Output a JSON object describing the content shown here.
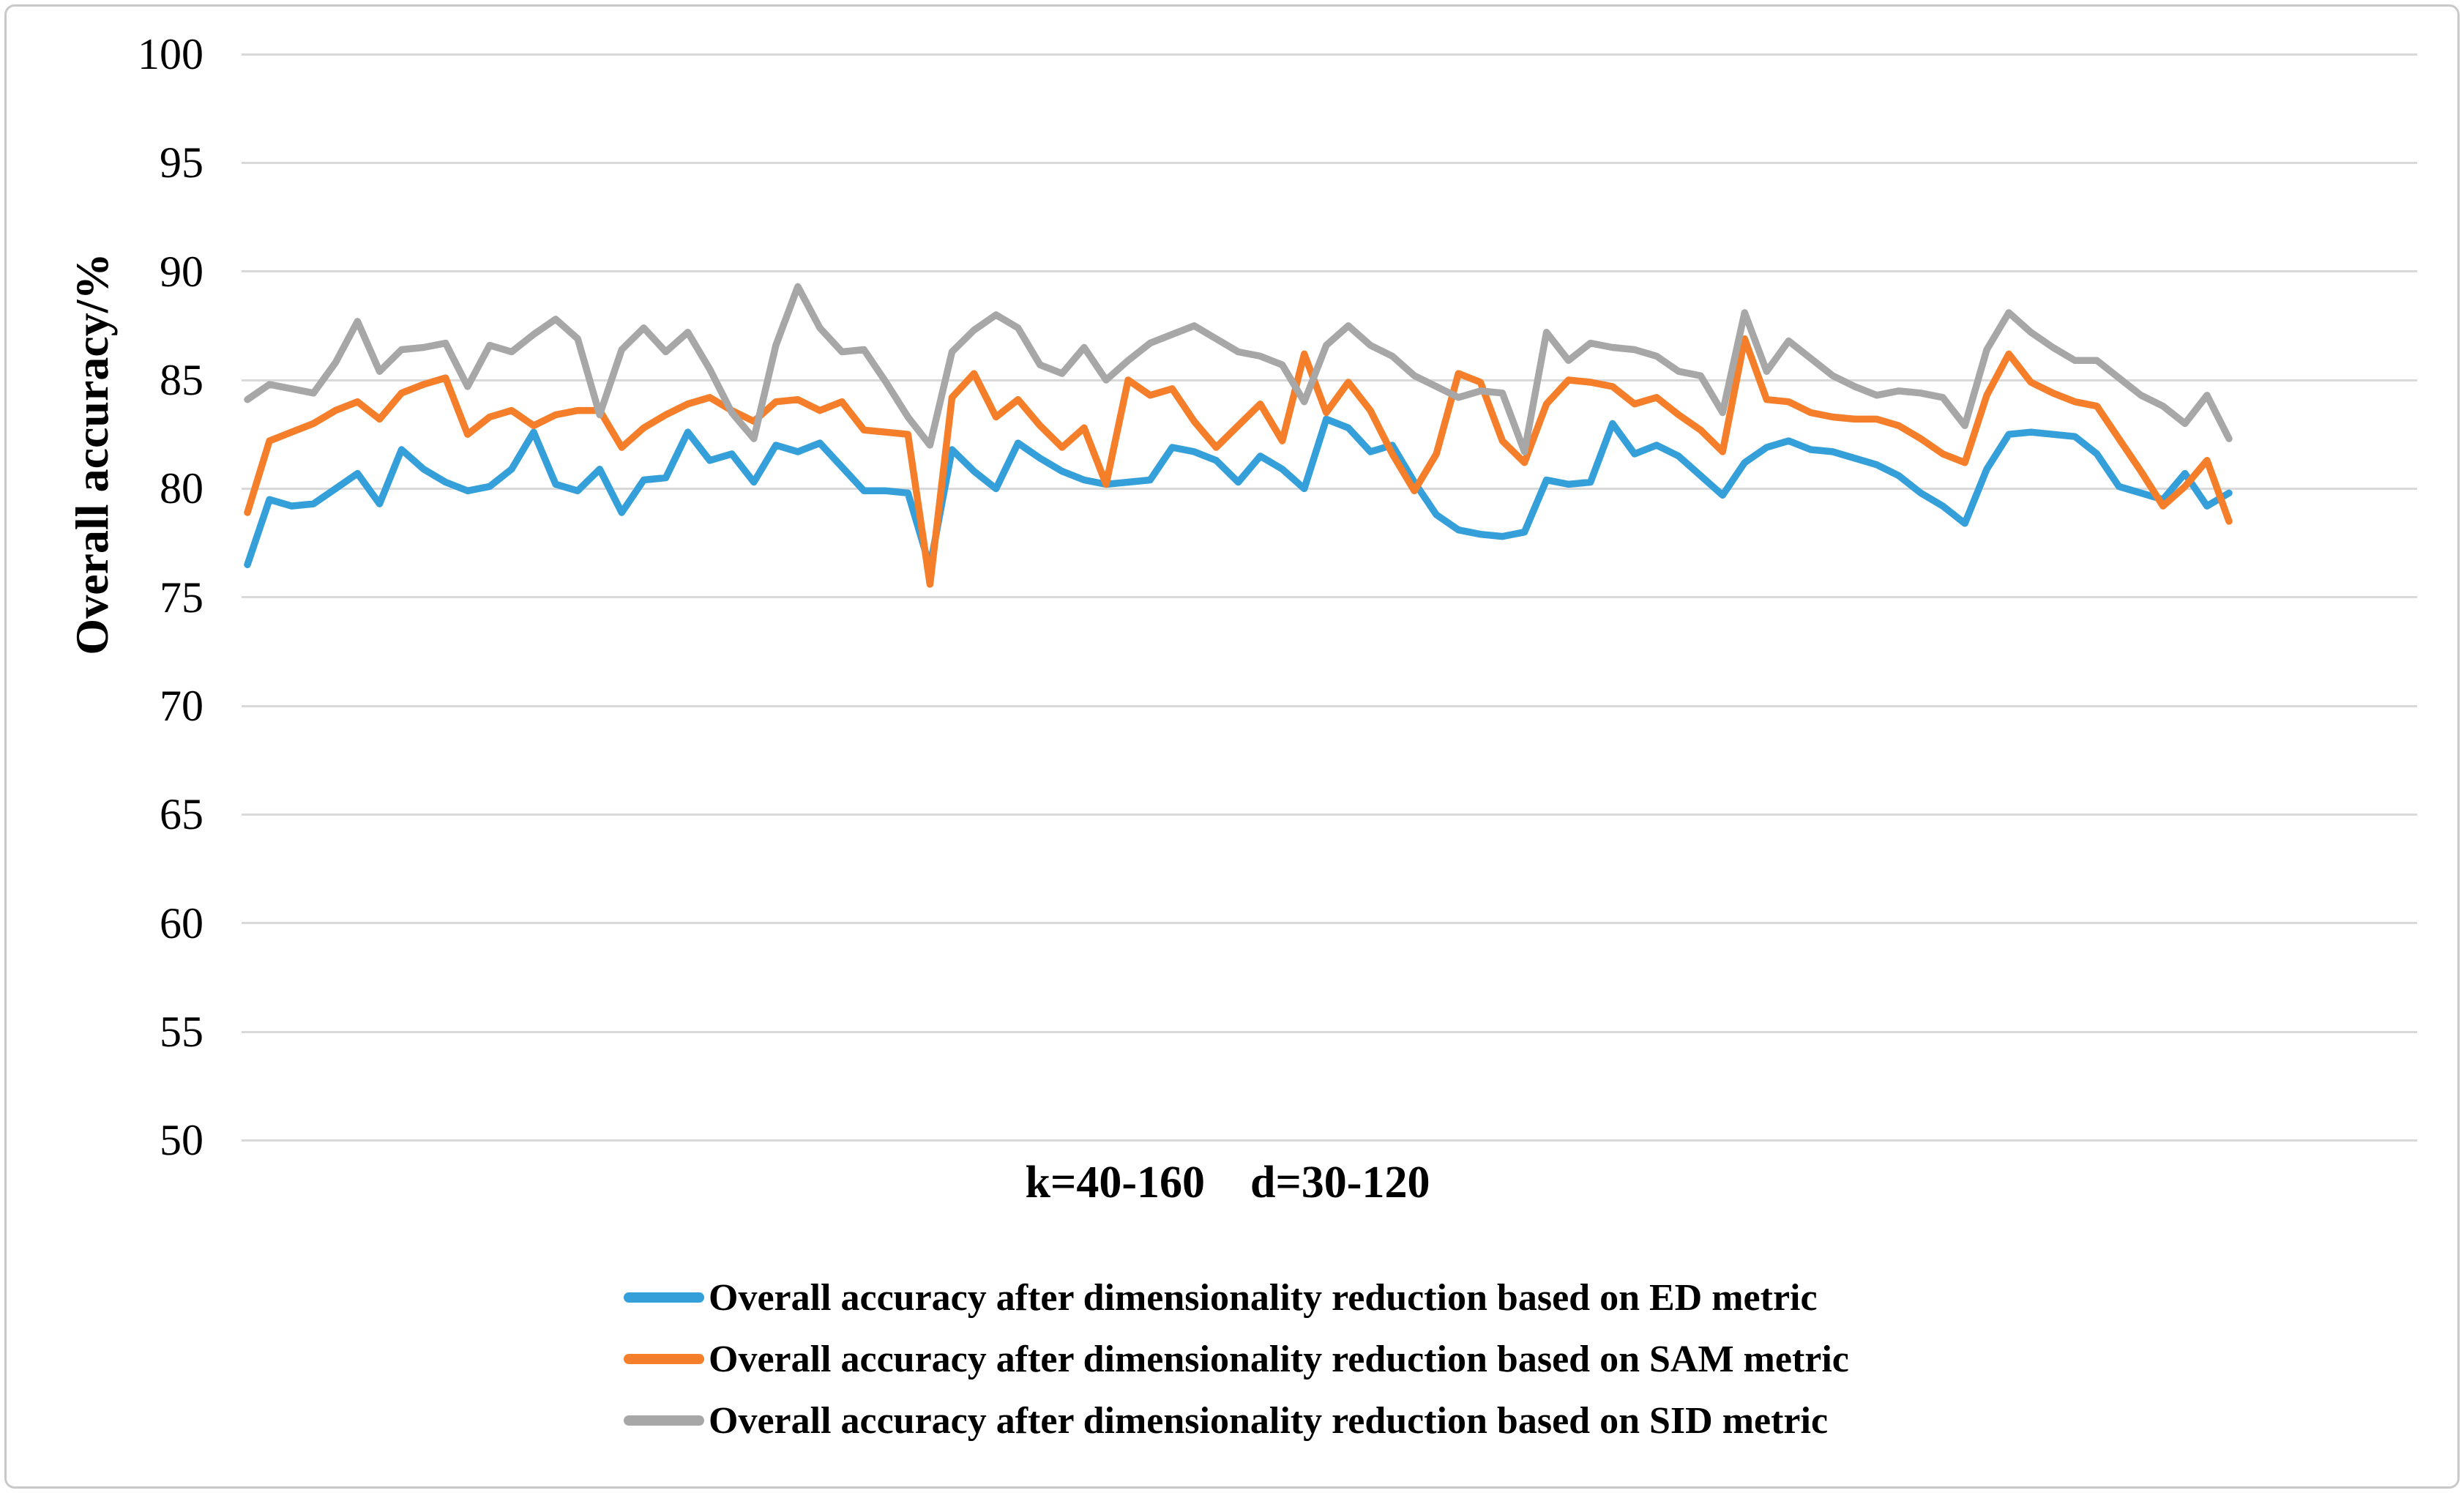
{
  "y_axis": {
    "title": "Overall accuracy/%",
    "ticks": [
      100,
      95,
      90,
      85,
      80,
      75,
      70,
      65,
      60,
      55,
      50
    ],
    "min": 50,
    "max": 100
  },
  "x_axis": {
    "label": "k=40-160    d=30-120"
  },
  "legend": {
    "items": [
      {
        "label": "Overall accuracy after dimensionality reduction based on ED metric",
        "color": "#359fd9"
      },
      {
        "label": "Overall accuracy after dimensionality reduction based on SAM metric",
        "color": "#f57e2a"
      },
      {
        "label": "Overall accuracy after dimensionality reduction based on SID metric",
        "color": "#a7a7a7"
      }
    ]
  },
  "chart_data": {
    "type": "line",
    "title": "",
    "xlabel": "k=40-160    d=30-120",
    "ylabel": "Overall accuracy/%",
    "ylim": [
      50,
      100
    ],
    "grid": true,
    "legend_position": "bottom",
    "x_point_count": 91,
    "x_note": "91 unlabeled parameter combinations spanning k=40-160, d=30-120",
    "series": [
      {
        "name": "Overall accuracy after dimensionality reduction based on ED metric",
        "color": "#359fd9",
        "values": [
          76.5,
          79.5,
          79.2,
          79.3,
          80.0,
          80.7,
          79.3,
          81.8,
          80.9,
          80.3,
          79.9,
          80.1,
          80.9,
          82.6,
          80.2,
          79.9,
          80.9,
          78.9,
          80.4,
          80.5,
          82.6,
          81.3,
          81.6,
          80.3,
          82.0,
          81.7,
          82.1,
          81.0,
          79.9,
          79.9,
          79.8,
          76.4,
          81.8,
          80.8,
          80.0,
          82.1,
          81.4,
          80.8,
          80.4,
          80.2,
          80.3,
          80.4,
          81.9,
          81.7,
          81.3,
          80.3,
          81.5,
          80.9,
          80.0,
          83.2,
          82.8,
          81.7,
          82.0,
          80.3,
          78.8,
          78.1,
          77.9,
          77.8,
          78.0,
          80.4,
          80.2,
          80.3,
          83.0,
          81.6,
          82.0,
          81.5,
          80.6,
          79.7,
          81.2,
          81.9,
          82.2,
          81.8,
          81.7,
          81.4,
          81.1,
          80.6,
          79.8,
          79.2,
          78.4,
          80.9,
          82.5,
          82.6,
          82.5,
          82.4,
          81.6,
          80.1,
          79.8,
          79.5,
          80.7,
          79.2,
          79.8
        ]
      },
      {
        "name": "Overall accuracy after dimensionality reduction based on SAM metric",
        "color": "#f57e2a",
        "values": [
          78.9,
          82.2,
          82.6,
          83.0,
          83.6,
          84.0,
          83.2,
          84.4,
          84.8,
          85.1,
          82.5,
          83.3,
          83.6,
          82.9,
          83.4,
          83.6,
          83.6,
          81.9,
          82.8,
          83.4,
          83.9,
          84.2,
          83.6,
          83.1,
          84.0,
          84.1,
          83.6,
          84.0,
          82.7,
          82.6,
          82.5,
          75.6,
          84.2,
          85.3,
          83.3,
          84.1,
          82.9,
          81.9,
          82.8,
          80.2,
          85.0,
          84.3,
          84.6,
          83.1,
          81.9,
          82.9,
          83.9,
          82.2,
          86.2,
          83.5,
          84.9,
          83.6,
          81.6,
          79.9,
          81.6,
          85.3,
          84.9,
          82.2,
          81.2,
          83.9,
          85.0,
          84.9,
          84.7,
          83.9,
          84.2,
          83.4,
          82.7,
          81.7,
          86.9,
          84.1,
          84.0,
          83.5,
          83.3,
          83.2,
          83.2,
          82.9,
          82.3,
          81.6,
          81.2,
          84.3,
          86.2,
          84.9,
          84.4,
          84.0,
          83.8,
          82.3,
          80.8,
          79.2,
          80.1,
          81.3,
          78.5
        ]
      },
      {
        "name": "Overall accuracy after dimensionality reduction based on SID metric",
        "color": "#a7a7a7",
        "values": [
          84.1,
          84.8,
          84.6,
          84.4,
          85.8,
          87.7,
          85.4,
          86.4,
          86.5,
          86.7,
          84.7,
          86.6,
          86.3,
          87.1,
          87.8,
          86.9,
          83.4,
          86.4,
          87.4,
          86.3,
          87.2,
          85.5,
          83.5,
          82.3,
          86.6,
          89.3,
          87.4,
          86.3,
          86.4,
          84.9,
          83.3,
          82.0,
          86.3,
          87.3,
          88.0,
          87.4,
          85.7,
          85.3,
          86.5,
          85.0,
          85.9,
          86.7,
          87.1,
          87.5,
          86.9,
          86.3,
          86.1,
          85.7,
          84.0,
          86.6,
          87.5,
          86.6,
          86.1,
          85.2,
          84.7,
          84.2,
          84.5,
          84.4,
          81.7,
          87.2,
          85.9,
          86.7,
          86.5,
          86.4,
          86.1,
          85.4,
          85.2,
          83.5,
          88.1,
          85.4,
          86.8,
          86.0,
          85.2,
          84.7,
          84.3,
          84.5,
          84.4,
          84.2,
          82.9,
          86.4,
          88.1,
          87.2,
          86.5,
          85.9,
          85.9,
          85.1,
          84.3,
          83.8,
          83.0,
          84.3,
          82.3
        ]
      }
    ]
  },
  "layout_colors": {
    "gridline": "#d9d9d9",
    "frame_border": "#c9c9c9",
    "text": "#000000"
  }
}
